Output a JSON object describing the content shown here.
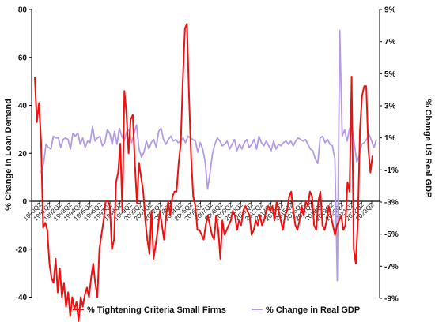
{
  "chart_data": {
    "type": "line",
    "ylabel": "% Change In Loan Demand",
    "y2label": "% Change US Real GDP",
    "ylim": [
      -40,
      80
    ],
    "yticks": [
      -40,
      -20,
      0,
      20,
      40,
      60,
      80
    ],
    "y2lim": [
      -9,
      9
    ],
    "y2ticks": [
      "-9%",
      "-7%",
      "-5%",
      "-3%",
      "-1%",
      "1%",
      "3%",
      "5%",
      "7%",
      "9%"
    ],
    "x_labels": [
      "1990Q2",
      "1991Q2",
      "1992Q2",
      "1993Q2",
      "1994Q2",
      "1995Q2",
      "1996Q2",
      "1997Q2",
      "1998Q2",
      "1999Q2",
      "2000Q2",
      "2001Q2",
      "2002Q2",
      "2003Q2",
      "2004Q2",
      "2005Q2",
      "2006Q2",
      "2007Q2",
      "2008Q2",
      "2009Q2",
      "2010Q2",
      "2011Q2",
      "2012Q2",
      "2013Q2",
      "2014Q2",
      "2015Q2",
      "2016Q2",
      "2017Q2",
      "2018Q2",
      "2019Q2",
      "2020Q2",
      "2021Q2",
      "2022Q2",
      "2023Q2"
    ],
    "legend": "bottom",
    "series": [
      {
        "name": "% Tightening Criteria Small Firms",
        "color": "#ee1111",
        "axis": "left",
        "values": [
          52,
          33,
          41,
          25,
          -11,
          -9,
          -12,
          -26,
          -32,
          -34,
          -24,
          -38,
          -28,
          -40,
          -34,
          -44,
          -38,
          -48,
          -40,
          -45,
          -42,
          -50,
          -40,
          -44,
          -39,
          -36,
          -40,
          -32,
          -26,
          -34,
          -40,
          -20,
          -14,
          -8,
          0,
          0,
          -2,
          -20,
          -16,
          8,
          12,
          24,
          -4,
          46,
          36,
          20,
          34,
          36,
          16,
          -1,
          16,
          10,
          4,
          -8,
          -16,
          -22,
          -4,
          -24,
          -18,
          -12,
          -4,
          -10,
          -16,
          -6,
          0,
          -6,
          2,
          4,
          4,
          16,
          24,
          50,
          72,
          74,
          44,
          18,
          2,
          -2,
          -12,
          -12,
          -14,
          -16,
          -10,
          -6,
          -10,
          -14,
          -16,
          -6,
          -12,
          -24,
          -8,
          -14,
          -12,
          -10,
          -8,
          -4,
          -6,
          -12,
          -8,
          -10,
          -4,
          -2,
          -4,
          -6,
          -14,
          -12,
          -8,
          -10,
          -6,
          -10,
          -8,
          -4,
          -2,
          -4,
          -2,
          -8,
          0,
          -4,
          -8,
          -12,
          -6,
          -4,
          2,
          4,
          -4,
          -10,
          -12,
          -8,
          -2,
          -6,
          0,
          -2,
          4,
          2,
          -10,
          -12,
          0,
          4,
          -10,
          -12,
          -8,
          -2,
          -6,
          -10,
          -14,
          -10,
          -8,
          -6,
          -12,
          -10,
          8,
          4,
          52,
          -20,
          -26,
          -8,
          30,
          44,
          48,
          48,
          22,
          12,
          19
        ]
      },
      {
        "name": "% Change in Real GDP",
        "color": "#b39be4",
        "axis": "right",
        "values": [
          -1.2,
          -0.6,
          0.6,
          0.4,
          0.3,
          1.1,
          1.0,
          1.0,
          0.4,
          0.9,
          1.0,
          0.9,
          0.3,
          1.3,
          1.1,
          1.3,
          0.6,
          1.0,
          0.4,
          0.8,
          0.7,
          1.7,
          0.8,
          1.0,
          1.1,
          0.5,
          0.7,
          1.5,
          1.3,
          0.6,
          1.4,
          0.6,
          1.6,
          1.1,
          0.8,
          1.4,
          1.5,
          0.7,
          1.3,
          1.8,
          0.3,
          -0.2,
          0.1,
          0.8,
          0.3,
          0.7,
          0.9,
          0.4,
          1.4,
          1.6,
          0.9,
          0.6,
          0.9,
          1.1,
          0.8,
          0.9,
          0.7,
          0.8,
          1.0,
          0.7,
          1.1,
          1.0,
          0.9,
          0.8,
          0.1,
          0.7,
          0.3,
          -0.5,
          -2.2,
          -1.2,
          0.0,
          0.6,
          1.0,
          0.8,
          0.5,
          0.6,
          0.8,
          0.3,
          0.6,
          0.9,
          0.2,
          0.6,
          0.3,
          0.7,
          0.9,
          0.4,
          0.6,
          0.9,
          0.3,
          1.1,
          0.7,
          0.5,
          0.8,
          0.5,
          0.2,
          0.8,
          0.3,
          0.6,
          0.5,
          0.7,
          0.8,
          0.6,
          0.8,
          0.5,
          0.8,
          1.0,
          0.9,
          0.8,
          0.9,
          0.6,
          0.3,
          0.2,
          -0.3,
          -0.6,
          1.0,
          1.1,
          0.7,
          0.9,
          0.6,
          0.5,
          -0.3,
          -7.9,
          7.7,
          1.1,
          1.5,
          0.8,
          1.6,
          1.7,
          0.6,
          -0.5,
          -0.1,
          0.6,
          0.7,
          0.9,
          1.2,
          0.8,
          0.4,
          0.9
        ]
      }
    ]
  }
}
